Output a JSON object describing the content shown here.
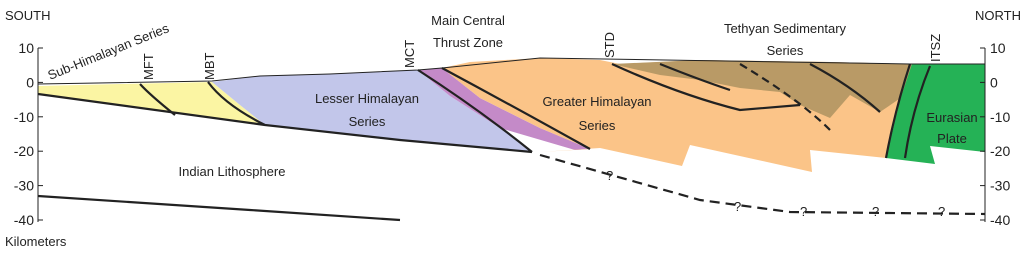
{
  "header": {
    "south": "SOUTH",
    "north": "NORTH"
  },
  "axis": {
    "ticks": [
      10,
      0,
      -10,
      -20,
      -30,
      -40
    ],
    "unit": "Kilometers"
  },
  "faults": {
    "mft": "MFT",
    "mbt": "MBT",
    "mct": "MCT",
    "std": "STD",
    "itsz": "ITSZ"
  },
  "labels": {
    "sub_himalayan": "Sub-Himalayan Series",
    "mct_zone": [
      "Main Central",
      "Thrust Zone"
    ],
    "tethyan": [
      "Tethyan Sedimentary",
      "Series"
    ],
    "lesser": [
      "Lesser Himalayan",
      "Series"
    ],
    "greater": [
      "Greater Himalayan",
      "Series"
    ],
    "eurasian": [
      "Eurasian",
      "Plate"
    ],
    "indian": "Indian Lithosphere"
  },
  "question_marks": [
    "?",
    "?",
    "?",
    "?",
    "?"
  ]
}
